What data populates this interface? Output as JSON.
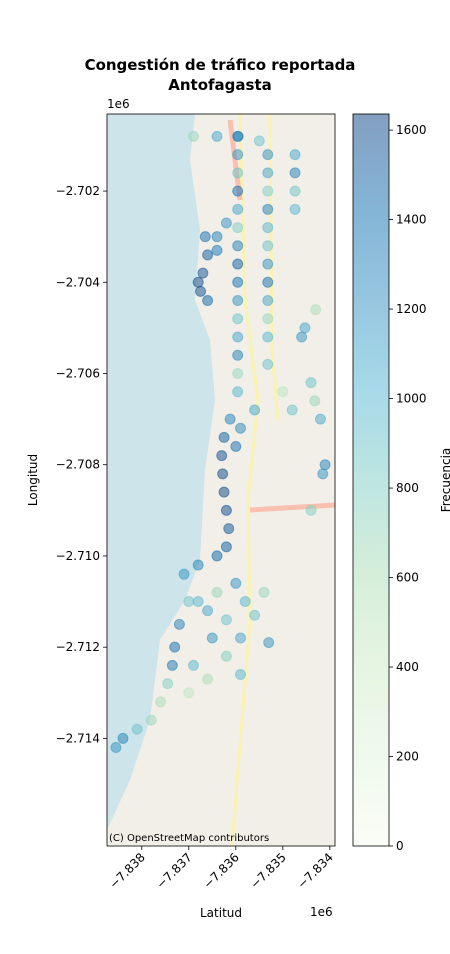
{
  "chart_data": {
    "type": "scatter",
    "title": [
      "Congestión de tráfico reportada",
      "Antofagasta"
    ],
    "x_label": "Latitud",
    "y_label": "Longitud",
    "colorbar_label": "Frecuencia",
    "x_offset": "1e6",
    "y_offset": "1e6",
    "attribution": "(C) OpenStreetMap contributors",
    "xlim": [
      -7.83874,
      -7.83389
    ],
    "ylim": [
      -2.71636,
      -2.70031
    ],
    "xticks": [
      {
        "value": -7.838,
        "label": "−7.838"
      },
      {
        "value": -7.837,
        "label": "−7.837"
      },
      {
        "value": -7.836,
        "label": "−7.836"
      },
      {
        "value": -7.835,
        "label": "−7.835"
      },
      {
        "value": -7.834,
        "label": "−7.834"
      }
    ],
    "yticks": [
      {
        "value": -2.702,
        "label": "−2.702"
      },
      {
        "value": -2.704,
        "label": "−2.704"
      },
      {
        "value": -2.706,
        "label": "−2.706"
      },
      {
        "value": -2.708,
        "label": "−2.708"
      },
      {
        "value": -2.71,
        "label": "−2.710"
      },
      {
        "value": -2.712,
        "label": "−2.712"
      },
      {
        "value": -2.714,
        "label": "−2.714"
      }
    ],
    "clim": [
      0,
      1636
    ],
    "cticks": [
      0,
      200,
      400,
      600,
      800,
      1000,
      1200,
      1400,
      1600
    ],
    "colormap": [
      "#f7fcf0",
      "#e0f3db",
      "#ccebc5",
      "#a8ddb5",
      "#7bccc4",
      "#4eb3d3",
      "#2b8cbe",
      "#0868ac",
      "#084081"
    ],
    "opacity": 0.5,
    "x": [
      -7.83665,
      -7.8366,
      -7.8367,
      -7.8368,
      -7.83675,
      -7.8366,
      -7.8364,
      -7.8362,
      -7.8364,
      -7.83612,
      -7.83625,
      -7.8363,
      -7.83628,
      -7.83625,
      -7.8362,
      -7.83615,
      -7.8362,
      -7.8364,
      -7.836,
      -7.8359,
      -7.8356,
      -7.8368,
      -7.8371,
      -7.837,
      -7.8372,
      -7.8373,
      -7.83735,
      -7.83745,
      -7.8376,
      -7.8378,
      -7.8381,
      -7.8384,
      -7.83855,
      -7.8368,
      -7.8366,
      -7.8364,
      -7.8362,
      -7.836,
      -7.8358,
      -7.8365,
      -7.8362,
      -7.8369,
      -7.8366,
      -7.837,
      -7.8359,
      -7.8356,
      -7.8354,
      -7.8359,
      -7.8353,
      -7.83596,
      -7.83596,
      -7.83596,
      -7.83596,
      -7.83596,
      -7.83596,
      -7.83596,
      -7.83596,
      -7.83596,
      -7.83596,
      -7.83596,
      -7.83596,
      -7.83596,
      -7.83596,
      -7.83596,
      -7.83532,
      -7.83532,
      -7.83532,
      -7.83532,
      -7.83532,
      -7.83532,
      -7.83532,
      -7.83532,
      -7.83532,
      -7.83532,
      -7.83532,
      -7.83532,
      -7.83474,
      -7.83474,
      -7.83474,
      -7.83474,
      -7.83453,
      -7.8346,
      -7.8344,
      -7.83432,
      -7.8342,
      -7.8341,
      -7.83415,
      -7.8344,
      -7.8343,
      -7.835,
      -7.8348,
      -7.83595,
      -7.8364,
      -7.8369,
      -7.8355
    ],
    "y": [
      -2.703,
      -2.7034,
      -2.7038,
      -2.704,
      -2.7042,
      -2.7044,
      -2.703,
      -2.7027,
      -2.7033,
      -2.707,
      -2.7074,
      -2.7078,
      -2.7082,
      -2.7086,
      -2.709,
      -2.7094,
      -2.7098,
      -2.71,
      -2.7076,
      -2.7072,
      -2.7068,
      -2.7102,
      -2.7104,
      -2.711,
      -2.7115,
      -2.712,
      -2.7124,
      -2.7128,
      -2.7132,
      -2.7136,
      -2.7138,
      -2.714,
      -2.7142,
      -2.711,
      -2.7112,
      -2.7108,
      -2.7114,
      -2.7106,
      -2.711,
      -2.7118,
      -2.7122,
      -2.7124,
      -2.7127,
      -2.713,
      -2.7118,
      -2.7113,
      -2.7108,
      -2.7126,
      -2.7119,
      -2.7008,
      -2.7012,
      -2.7016,
      -2.702,
      -2.7024,
      -2.7028,
      -2.7032,
      -2.7036,
      -2.704,
      -2.7044,
      -2.7048,
      -2.7052,
      -2.7056,
      -2.706,
      -2.7064,
      -2.7012,
      -2.7016,
      -2.702,
      -2.7024,
      -2.7028,
      -2.7032,
      -2.7036,
      -2.704,
      -2.7044,
      -2.7048,
      -2.7052,
      -2.7058,
      -2.7012,
      -2.7016,
      -2.702,
      -2.7024,
      -2.705,
      -2.7052,
      -2.7062,
      -2.7066,
      -2.707,
      -2.708,
      -2.7082,
      -2.709,
      -2.7046,
      -2.7064,
      -2.7068,
      -2.7008,
      -2.7008,
      -2.7008,
      -2.7009
    ],
    "values": [
      1400,
      1500,
      1550,
      1600,
      1580,
      1450,
      1300,
      1200,
      1350,
      1300,
      1500,
      1580,
      1600,
      1620,
      1600,
      1550,
      1500,
      1450,
      1400,
      1250,
      1100,
      1300,
      1200,
      900,
      1300,
      1400,
      1350,
      800,
      600,
      700,
      900,
      1300,
      1200,
      1000,
      1100,
      700,
      900,
      1200,
      1000,
      1200,
      800,
      1000,
      600,
      500,
      1100,
      900,
      700,
      1000,
      1200,
      1300,
      1200,
      900,
      1400,
      1100,
      800,
      1300,
      1500,
      1400,
      1200,
      900,
      1100,
      1300,
      700,
      1000,
      1200,
      1100,
      800,
      1300,
      1000,
      900,
      1200,
      1400,
      1100,
      700,
      1000,
      900,
      1100,
      1300,
      900,
      1000,
      1100,
      1200,
      900,
      700,
      1100,
      1300,
      1200,
      800,
      600,
      500,
      900,
      1300,
      1100,
      700,
      900
    ]
  }
}
